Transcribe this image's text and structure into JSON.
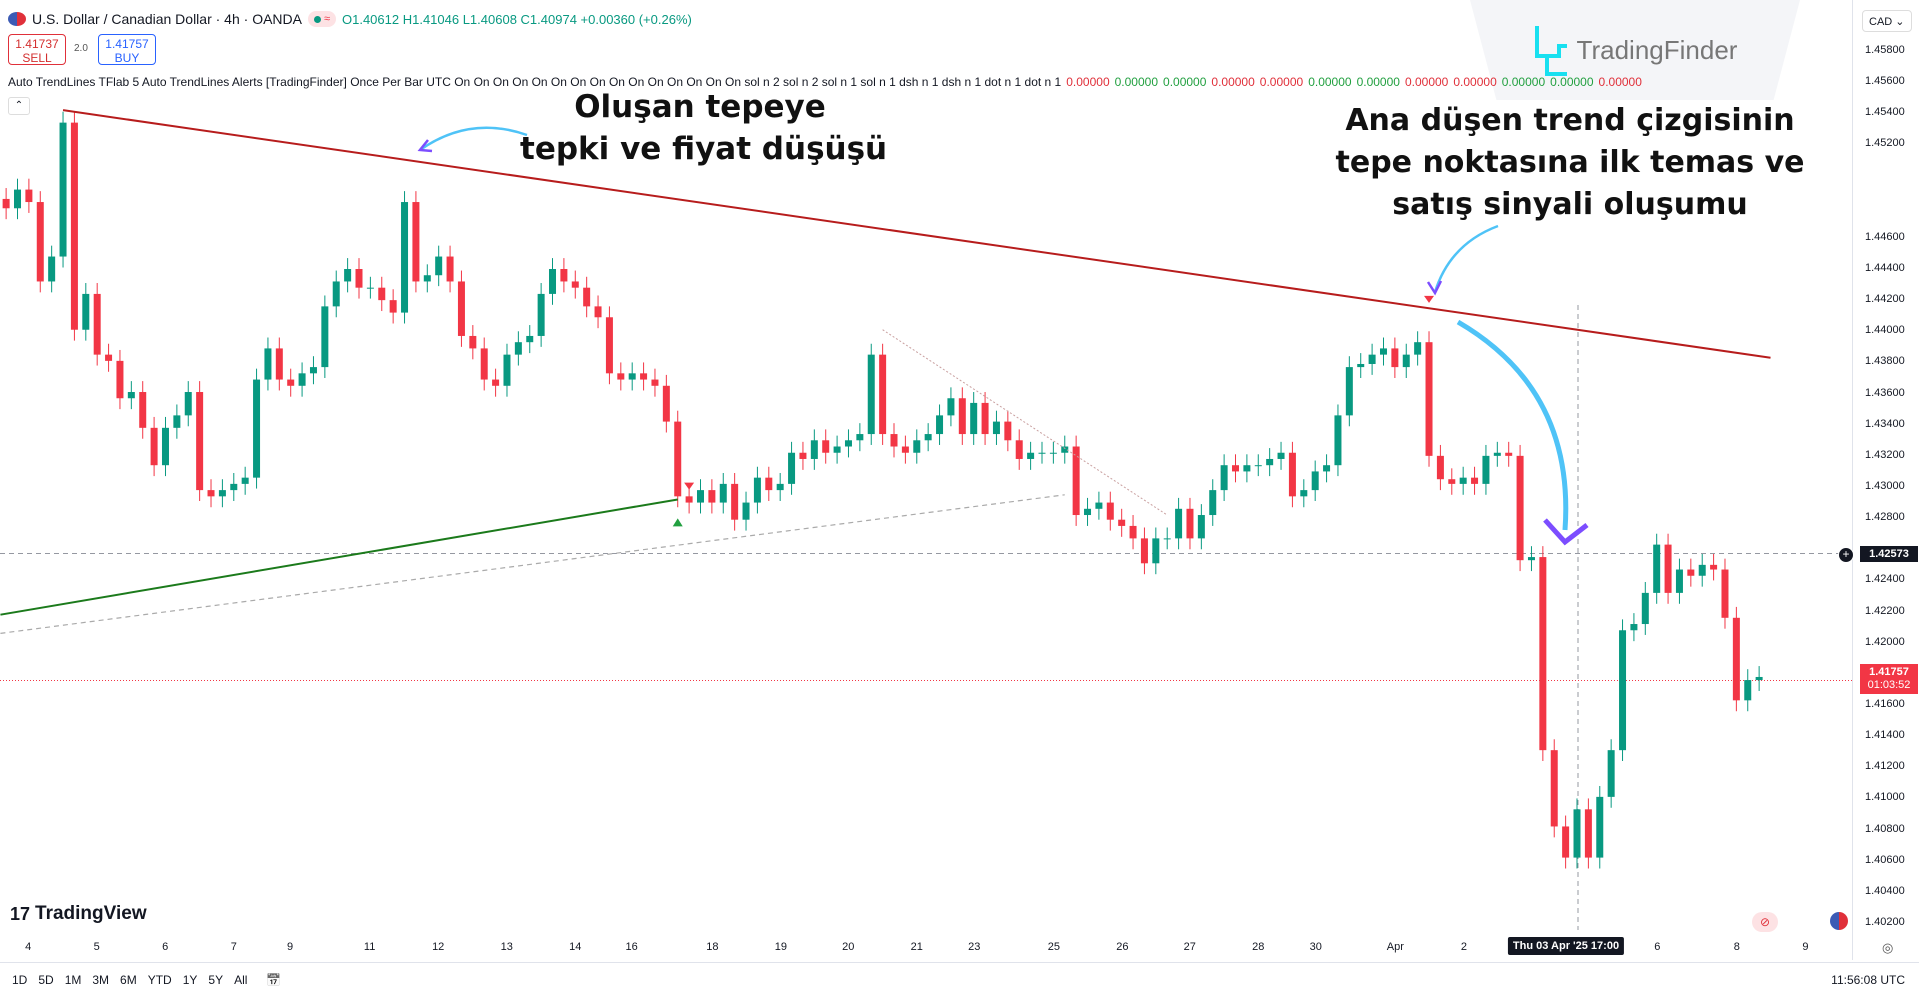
{
  "header": {
    "symbol": "U.S. Dollar / Canadian Dollar · 4h · OANDA",
    "ohlc": "O1.40612 H1.41046 L1.40608 C1.40974 +0.00360 (+0.26%)"
  },
  "trade": {
    "sell_price": "1.41737",
    "sell_label": "SELL",
    "spread": "2.0",
    "buy_price": "1.41757",
    "buy_label": "BUY"
  },
  "indicator": {
    "text": "Auto TrendLines TFlab 5 Auto TrendLines Alerts [TradingFinder] Once Per Bar UTC On On On On On On On On On On On On On On On sol n 2 sol n 2 sol n 1 sol n 1 dsh n 1 dsh n 1 dot n 1 dot n 1",
    "values": [
      {
        "v": "0.00000",
        "c": "r"
      },
      {
        "v": "0.00000",
        "c": "g"
      },
      {
        "v": "0.00000",
        "c": "g"
      },
      {
        "v": "0.00000",
        "c": "r"
      },
      {
        "v": "0.00000",
        "c": "r"
      },
      {
        "v": "0.00000",
        "c": "g"
      },
      {
        "v": "0.00000",
        "c": "g"
      },
      {
        "v": "0.00000",
        "c": "r"
      },
      {
        "v": "0.00000",
        "c": "r"
      },
      {
        "v": "0.00000",
        "c": "g"
      },
      {
        "v": "0.00000",
        "c": "g"
      },
      {
        "v": "0.00000",
        "c": "r"
      }
    ]
  },
  "currency": "CAD",
  "logo": {
    "text": "TradingFinder"
  },
  "tv_logo": "TradingView",
  "annotations": {
    "left": [
      "Oluşan tepeye",
      "tepki ve fiyat düşüşü"
    ],
    "right": [
      "Ana düşen trend çizgisinin",
      "tepe noktasına ilk temas ve",
      "satış sinyali oluşumu"
    ]
  },
  "colors": {
    "up": "#089981",
    "down": "#f23645",
    "resistance": "#b71c1c",
    "support": "#1b7a1b",
    "arrow": "#4fc3f7",
    "arrow_head": "#7c4dff"
  },
  "price_axis": [
    "1.45800",
    "1.45600",
    "1.45400",
    "1.45200",
    "1.44600",
    "1.44400",
    "1.44200",
    "1.44000",
    "1.43800",
    "1.43600",
    "1.43400",
    "1.43200",
    "1.43000",
    "1.42800",
    "1.42400",
    "1.42200",
    "1.42000",
    "1.41600",
    "1.41400",
    "1.41200",
    "1.41000",
    "1.40800",
    "1.40600",
    "1.40400",
    "1.40200"
  ],
  "crosshair_price": "1.42573",
  "current": {
    "price": "1.41757",
    "countdown": "01:03:52"
  },
  "time_axis": [
    "4",
    "5",
    "6",
    "7",
    "9",
    "11",
    "12",
    "13",
    "14",
    "16",
    "18",
    "19",
    "20",
    "21",
    "23",
    "25",
    "26",
    "27",
    "28",
    "30",
    "Apr",
    "2",
    "6",
    "8",
    "9"
  ],
  "crosshair_time": "Thu 03 Apr '25 17:00",
  "timeframes": [
    "1D",
    "5D",
    "1M",
    "3M",
    "6M",
    "YTD",
    "1Y",
    "5Y",
    "All"
  ],
  "clock": "11:56:08 UTC",
  "chart_data": {
    "type": "candlestick",
    "timeframe": "4h",
    "closes": [
      1.4479,
      1.4491,
      1.4483,
      1.4432,
      1.4448,
      1.4534,
      1.4401,
      1.4424,
      1.4385,
      1.4381,
      1.4357,
      1.4361,
      1.4338,
      1.4314,
      1.4338,
      1.4346,
      1.4361,
      1.4298,
      1.4294,
      1.4298,
      1.4302,
      1.4306,
      1.4369,
      1.4389,
      1.4369,
      1.4365,
      1.4373,
      1.4377,
      1.4416,
      1.4432,
      1.444,
      1.4428,
      1.4428,
      1.442,
      1.4412,
      1.4483,
      1.4432,
      1.4436,
      1.4448,
      1.4432,
      1.4397,
      1.4389,
      1.4369,
      1.4365,
      1.4385,
      1.4393,
      1.4397,
      1.4424,
      1.444,
      1.4432,
      1.4428,
      1.4416,
      1.4409,
      1.4373,
      1.4369,
      1.4373,
      1.4369,
      1.4365,
      1.4342,
      1.4294,
      1.429,
      1.4298,
      1.429,
      1.4302,
      1.4279,
      1.429,
      1.4306,
      1.4298,
      1.4302,
      1.4322,
      1.4318,
      1.433,
      1.4322,
      1.4326,
      1.433,
      1.4334,
      1.4385,
      1.4334,
      1.4326,
      1.4322,
      1.433,
      1.4334,
      1.4346,
      1.4357,
      1.4334,
      1.4354,
      1.4334,
      1.4342,
      1.433,
      1.4318,
      1.4322,
      1.4322,
      1.4322,
      1.4326,
      1.4282,
      1.4286,
      1.429,
      1.4279,
      1.4275,
      1.4267,
      1.4251,
      1.4267,
      1.4267,
      1.4286,
      1.4267,
      1.4282,
      1.4298,
      1.4314,
      1.431,
      1.4314,
      1.4314,
      1.4318,
      1.4322,
      1.4294,
      1.4298,
      1.431,
      1.4314,
      1.4346,
      1.4377,
      1.4379,
      1.4385,
      1.4389,
      1.4377,
      1.4385,
      1.4393,
      1.432,
      1.4305,
      1.4302,
      1.4306,
      1.4302,
      1.432,
      1.4322,
      1.432,
      1.4253,
      1.4255,
      1.4131,
      1.4082,
      1.4062,
      1.4093,
      1.4062,
      1.4101,
      1.4131,
      1.4208,
      1.4212,
      1.4232,
      1.4263,
      1.4232,
      1.4247,
      1.4243,
      1.425,
      1.4247,
      1.4216,
      1.4163,
      1.4176,
      1.4178
    ],
    "trendlines": [
      {
        "kind": "resistance",
        "from": [
          5,
          1.4542
        ],
        "to": [
          155,
          1.4383
        ]
      },
      {
        "kind": "support",
        "from": [
          -0.5,
          1.4218
        ],
        "to": [
          59,
          1.4292
        ]
      },
      {
        "kind": "dashed",
        "from": [
          -0.5,
          1.4206
        ],
        "to": [
          93,
          1.4295
        ]
      },
      {
        "kind": "dotted",
        "from": [
          77,
          1.4401
        ],
        "to": [
          102,
          1.4282
        ]
      }
    ],
    "signals": [
      {
        "type": "sell",
        "index": 60
      },
      {
        "type": "buy",
        "index": 59
      },
      {
        "type": "sell",
        "index": 125
      }
    ]
  }
}
